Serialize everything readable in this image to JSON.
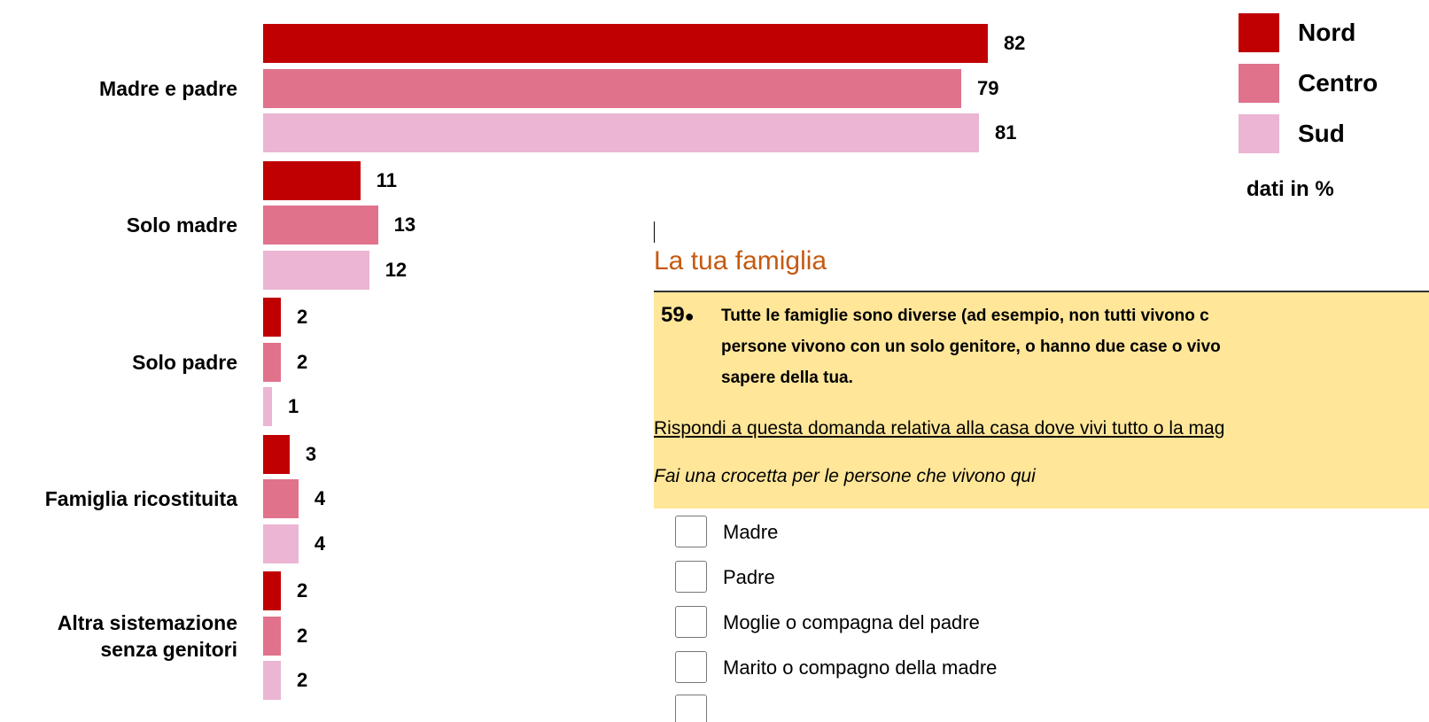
{
  "chart_data": {
    "type": "bar",
    "categories": [
      "Madre e padre",
      "Solo madre",
      "Solo padre",
      "Famiglia ricostituita",
      "Altra sistemazione senza genitori"
    ],
    "series": [
      {
        "name": "Nord",
        "color": "#c00000",
        "values": [
          82,
          11,
          2,
          3,
          2
        ]
      },
      {
        "name": "Centro",
        "color": "#e0728c",
        "values": [
          79,
          13,
          2,
          4,
          2
        ]
      },
      {
        "name": "Sud",
        "color": "#ebb5d3",
        "values": [
          81,
          12,
          1,
          4,
          2
        ]
      }
    ],
    "note": "dati in %",
    "legend": "top-right"
  },
  "inset": {
    "title": "La tua famiglia",
    "question_number": "59",
    "question_lines": [
      "Tutte le famiglie sono diverse (ad esempio, non tutti vivono c",
      "persone vivono con un solo genitore, o hanno due case o vivo",
      "sapere della tua."
    ],
    "instruction": "Rispondi a questa domanda relativa alla casa dove vivi tutto o la mag",
    "hint": "Fai una crocetta per le persone che vivono qui",
    "options": [
      "Madre",
      "Padre",
      "Moglie o compagna del padre",
      "Marito o compagno della madre"
    ]
  }
}
